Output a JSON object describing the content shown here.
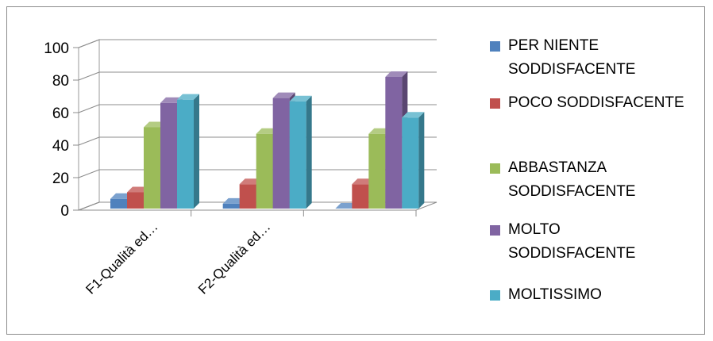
{
  "chart_data": {
    "type": "bar",
    "three_d": true,
    "categories": [
      "F1-Qualità ed…",
      "F2-Qualità  ed…",
      ""
    ],
    "y_ticks": [
      "0",
      "20",
      "40",
      "60",
      "80",
      "100"
    ],
    "ylim": [
      0,
      100
    ],
    "grid": true,
    "legend_position": "right",
    "series": [
      {
        "name": "PER NIENTE SODDISFACENTE",
        "color": "#4F81BD",
        "values": [
          6,
          3,
          0
        ]
      },
      {
        "name": "POCO SODDISFACENTE",
        "color": "#C0504D",
        "values": [
          10,
          15,
          15
        ]
      },
      {
        "name": "ABBASTANZA SODDISFACENTE",
        "color": "#9BBB59",
        "values": [
          50,
          46,
          46
        ]
      },
      {
        "name": "MOLTO SODDISFACENTE",
        "color": "#8064A2",
        "values": [
          65,
          68,
          81
        ]
      },
      {
        "name": "MOLTISSIMO",
        "color": "#4BACC6",
        "values": [
          67,
          66,
          56
        ]
      }
    ]
  },
  "legend": {
    "items": [
      {
        "label": "PER NIENTE\nSODDISFACENTE",
        "color": "#4F81BD"
      },
      {
        "label": "POCO SODDISFACENTE",
        "color": "#C0504D"
      },
      {
        "label": "ABBASTANZA\nSODDISFACENTE",
        "color": "#9BBB59"
      },
      {
        "label": "MOLTO\nSODDISFACENTE",
        "color": "#8064A2"
      },
      {
        "label": "MOLTISSIMO",
        "color": "#4BACC6"
      }
    ]
  }
}
